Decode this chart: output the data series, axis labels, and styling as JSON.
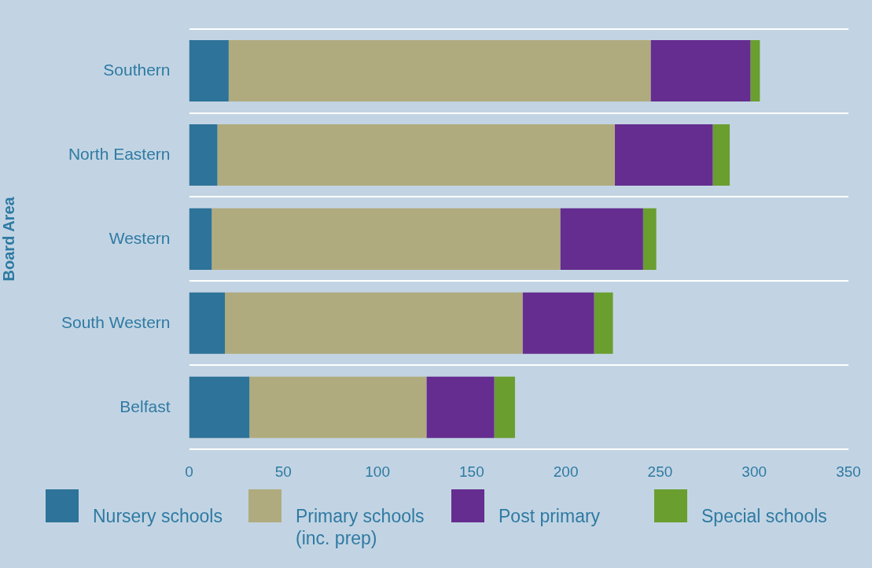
{
  "chart_data": {
    "type": "bar",
    "orientation": "horizontal",
    "stacked": true,
    "ylabel": "Board Area",
    "categories": [
      "Southern",
      "North Eastern",
      "Western",
      "South Western",
      "Belfast"
    ],
    "series": [
      {
        "name": "Nursery schools",
        "color": "#2e7399",
        "values": [
          21,
          15,
          12,
          19,
          32
        ]
      },
      {
        "name": "Primary schools (inc. prep)",
        "color": "#b0ab7e",
        "values": [
          224,
          211,
          185,
          158,
          94
        ]
      },
      {
        "name": "Post primary",
        "color": "#652d90",
        "values": [
          53,
          52,
          44,
          38,
          36
        ]
      },
      {
        "name": "Special schools",
        "color": "#6a9e2f",
        "values": [
          5,
          9,
          7,
          10,
          11
        ]
      }
    ],
    "xlim": [
      0,
      350
    ],
    "xticks": [
      0,
      50,
      100,
      150,
      200,
      250,
      300,
      350
    ],
    "grid": "y",
    "legend": "bottom"
  }
}
